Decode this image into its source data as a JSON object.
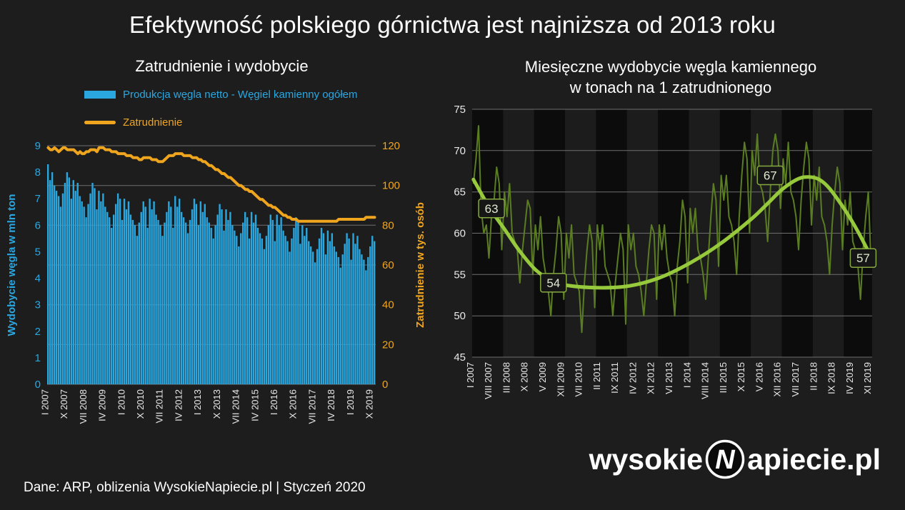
{
  "title": "Efektywność polskiego górnictwa jest najniższa od 2013 roku",
  "footer": {
    "source": "Dane: ARP, oblizenia WysokieNapiecie.pl  |  Styczeń 2020"
  },
  "logo": {
    "prefix": "wysokie",
    "emblem": "N",
    "suffix": "apiecie.pl"
  },
  "colors": {
    "background": "#1d1d1d",
    "production_blue": "#2BA7E0",
    "employment_orange": "#F0A51E",
    "monthly_green": "#5a7d22",
    "trend_green": "#97C93D",
    "gridline": "#6e6e6e",
    "tick_text": "#e8e8e8"
  },
  "chart_data": [
    {
      "type": "bar",
      "title": "Zatrudnienie i wydobycie",
      "legend": [
        {
          "label": "Produkcja węgla netto - Węgiel kamienny ogółem",
          "color": "#2BA7E0",
          "marker": "bar"
        },
        {
          "label": "Zatrudnienie",
          "color": "#F0A51E",
          "marker": "line"
        }
      ],
      "ylabel_left": "Wydobycie węgla w mln ton",
      "ylabel_right": "Zatrudnienie w tys. osób",
      "y_left": {
        "min": 0,
        "max": 9,
        "ticks": [
          0,
          1,
          2,
          3,
          4,
          5,
          6,
          7,
          8,
          9
        ]
      },
      "y_right": {
        "min": 0,
        "max": 120,
        "ticks": [
          0,
          20,
          40,
          60,
          80,
          100,
          120
        ]
      },
      "x_start": "I 2007",
      "x_end": "XI 2019",
      "x_tick_step_months": 9,
      "x_tick_labels": [
        "I 2007",
        "X 2007",
        "VII 2008",
        "IV 2009",
        "I 2010",
        "X 2010",
        "VII 2011",
        "IV 2012",
        "I 2013",
        "X 2013",
        "VII 2014",
        "IV 2015",
        "I 2016",
        "X 2016",
        "VII 2017",
        "IV 2018",
        "I 2019",
        "X 2019"
      ],
      "series": [
        {
          "name": "Produkcja węgla netto - Węgiel kamienny ogółem",
          "axis": "left",
          "type": "bar",
          "values": [
            8.3,
            7.7,
            8.0,
            7.5,
            7.3,
            7.1,
            6.7,
            7.2,
            7.6,
            8.0,
            7.8,
            7.0,
            7.7,
            7.3,
            7.6,
            7.1,
            6.9,
            6.7,
            6.3,
            6.8,
            7.2,
            7.6,
            7.4,
            6.6,
            7.3,
            6.9,
            7.2,
            6.7,
            6.5,
            6.3,
            5.9,
            6.4,
            6.8,
            7.2,
            7.0,
            6.2,
            7.0,
            6.6,
            6.9,
            6.4,
            6.2,
            6.0,
            5.6,
            6.1,
            6.5,
            6.9,
            6.7,
            5.9,
            7.0,
            6.6,
            6.9,
            6.4,
            6.2,
            6.0,
            5.6,
            6.1,
            6.5,
            6.9,
            6.7,
            5.9,
            7.1,
            6.7,
            7.0,
            6.5,
            6.3,
            6.1,
            5.7,
            6.2,
            6.6,
            7.0,
            6.8,
            6.0,
            6.9,
            6.5,
            6.8,
            6.3,
            6.1,
            5.9,
            5.5,
            6.0,
            6.4,
            6.8,
            6.6,
            5.8,
            6.6,
            6.2,
            6.5,
            6.0,
            5.8,
            5.6,
            5.2,
            5.7,
            6.1,
            6.5,
            6.3,
            5.5,
            6.5,
            6.1,
            6.4,
            5.9,
            5.7,
            5.5,
            5.1,
            5.6,
            6.0,
            6.4,
            6.2,
            5.4,
            6.4,
            6.0,
            6.3,
            5.8,
            5.6,
            5.4,
            5.0,
            5.5,
            5.9,
            6.3,
            6.1,
            5.3,
            6.0,
            5.6,
            5.9,
            5.4,
            5.2,
            5.0,
            4.6,
            5.1,
            5.5,
            5.9,
            5.7,
            4.9,
            5.8,
            5.4,
            5.7,
            5.2,
            5.0,
            4.8,
            4.4,
            4.9,
            5.3,
            5.7,
            5.5,
            4.7,
            5.7,
            5.3,
            5.6,
            5.1,
            4.9,
            4.7,
            4.3,
            4.8,
            5.2,
            5.6,
            5.4
          ]
        },
        {
          "name": "Zatrudnienie",
          "axis": "right",
          "type": "line",
          "values": [
            119,
            118,
            118,
            119,
            118,
            117,
            118,
            119,
            119,
            118,
            118,
            118,
            118,
            117,
            116,
            117,
            116,
            116,
            117,
            117,
            118,
            118,
            118,
            117,
            119,
            119,
            119,
            118,
            118,
            118,
            117,
            117,
            117,
            116,
            116,
            116,
            116,
            115,
            115,
            115,
            114,
            114,
            114,
            113,
            113,
            114,
            114,
            114,
            114,
            113,
            113,
            113,
            112,
            112,
            112,
            113,
            114,
            115,
            115,
            115,
            116,
            116,
            116,
            116,
            115,
            115,
            115,
            115,
            114,
            114,
            114,
            113,
            113,
            112,
            112,
            111,
            110,
            110,
            109,
            108,
            108,
            107,
            106,
            106,
            105,
            104,
            104,
            103,
            102,
            101,
            100,
            100,
            99,
            98,
            98,
            97,
            97,
            96,
            95,
            94,
            93,
            93,
            92,
            91,
            90,
            90,
            89,
            89,
            88,
            87,
            86,
            85,
            85,
            84,
            84,
            83,
            83,
            83,
            82,
            82,
            82,
            82,
            82,
            82,
            82,
            82,
            82,
            82,
            82,
            82,
            82,
            82,
            82,
            82,
            82,
            82,
            82,
            83,
            83,
            83,
            83,
            83,
            83,
            83,
            83,
            83,
            83,
            83,
            83,
            83,
            84,
            84,
            84,
            84,
            84
          ]
        }
      ]
    },
    {
      "type": "line",
      "title": "Miesięczne wydobycie węgla kamiennego w tonach na 1 zatrudnionego",
      "title_line1": "Miesięczne wydobycie węgla kamiennego",
      "title_line2": "w tonach na 1 zatrudnionego",
      "ylim": [
        45,
        75
      ],
      "y_ticks": [
        45,
        50,
        55,
        60,
        65,
        70,
        75
      ],
      "x_tick_step_months": 7,
      "x_tick_labels": [
        "I 2007",
        "VIII 2007",
        "III 2008",
        "X 2008",
        "V 2009",
        "XII 2009",
        "VII 2010",
        "II 2011",
        "IX 2011",
        "IV 2012",
        "XI 2012",
        "VI 2013",
        "I 2014",
        "VIII 2014",
        "III 2015",
        "X 2015",
        "V 2016",
        "XII 2016",
        "VII 2017",
        "II 2018",
        "IX 2018",
        "IV 2019",
        "XI 2019"
      ],
      "line_color": "#5a7d22",
      "trend_color": "#97C93D",
      "year_bands": {
        "start_year": 2007,
        "colors": [
          "#0c0c0c",
          "#1c1c1c"
        ]
      },
      "series": [
        {
          "name": "Wydobycie miesięczne na 1 zatrudnionego",
          "values": [
            66,
            69,
            73,
            63,
            60,
            61,
            57,
            62,
            64,
            68,
            66,
            58,
            65,
            62,
            66,
            60,
            59,
            58,
            54,
            58,
            61,
            64,
            63,
            55,
            61,
            58,
            62,
            57,
            55,
            53,
            50,
            55,
            58,
            62,
            60,
            52,
            60,
            57,
            61,
            55,
            54,
            53,
            48,
            54,
            58,
            61,
            59,
            51,
            61,
            58,
            61,
            56,
            55,
            54,
            50,
            54,
            57,
            60,
            58,
            49,
            61,
            58,
            60,
            56,
            55,
            53,
            50,
            54,
            58,
            61,
            60,
            52,
            61,
            58,
            61,
            57,
            55,
            54,
            50,
            56,
            59,
            64,
            62,
            54,
            63,
            60,
            63,
            58,
            57,
            55,
            52,
            57,
            62,
            66,
            64,
            56,
            67,
            64,
            67,
            62,
            61,
            59,
            55,
            62,
            67,
            71,
            69,
            60,
            70,
            67,
            72,
            66,
            65,
            63,
            59,
            65,
            70,
            72,
            70,
            63,
            69,
            66,
            71,
            65,
            64,
            62,
            58,
            64,
            68,
            71,
            69,
            61,
            67,
            64,
            68,
            62,
            61,
            59,
            55,
            61,
            65,
            68,
            66,
            58,
            64,
            61,
            65,
            59,
            58,
            56,
            52,
            58,
            62,
            65,
            57
          ]
        },
        {
          "name": "Trend",
          "points": [
            [
              0,
              66.5
            ],
            [
              6,
              63.2
            ],
            [
              12,
              60.5
            ],
            [
              18,
              57.8
            ],
            [
              24,
              55.6
            ],
            [
              30,
              54.3
            ],
            [
              36,
              53.7
            ],
            [
              48,
              53.4
            ],
            [
              60,
              53.6
            ],
            [
              72,
              54.6
            ],
            [
              84,
              56.4
            ],
            [
              96,
              58.8
            ],
            [
              108,
              61.8
            ],
            [
              114,
              63.6
            ],
            [
              120,
              65.4
            ],
            [
              126,
              66.6
            ],
            [
              130,
              66.8
            ],
            [
              134,
              66.5
            ],
            [
              138,
              65.4
            ],
            [
              144,
              62.8
            ],
            [
              149,
              60.2
            ],
            [
              154,
              57.2
            ]
          ]
        }
      ],
      "annotations": [
        {
          "label": "63",
          "month": 7,
          "value": 63
        },
        {
          "label": "54",
          "month": 31,
          "value": 54
        },
        {
          "label": "67",
          "month": 115,
          "value": 67
        },
        {
          "label": "57",
          "month": 151,
          "value": 57
        }
      ]
    }
  ]
}
